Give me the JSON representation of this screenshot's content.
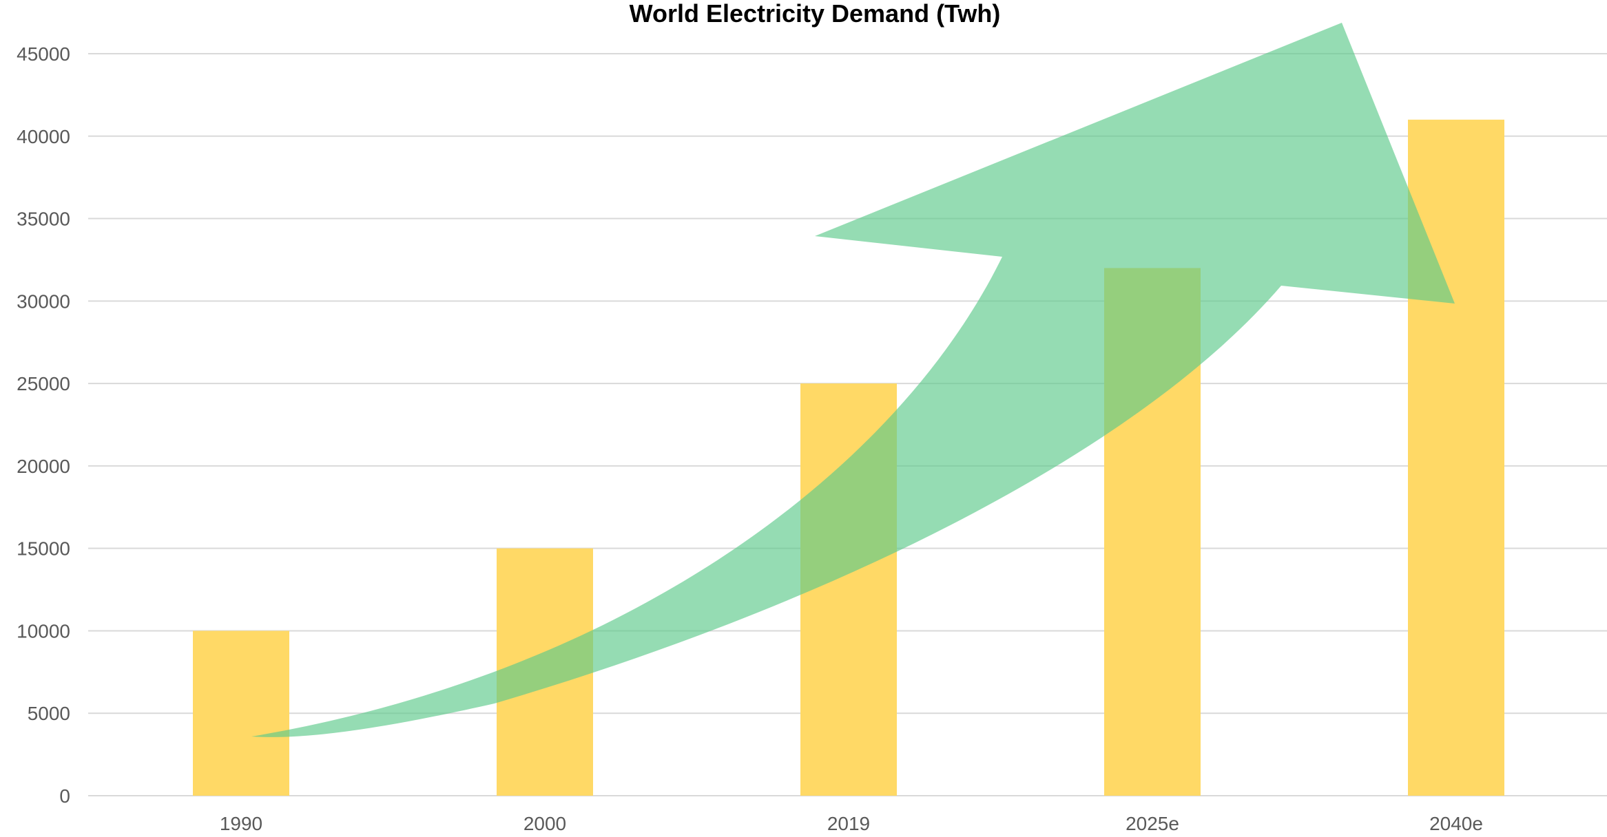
{
  "chart_data": {
    "type": "bar",
    "title": "World Electricity Demand (Twh)",
    "xlabel": "",
    "ylabel": "",
    "categories": [
      "1990",
      "2000",
      "2019",
      "2025e",
      "2040e"
    ],
    "values": [
      10000,
      15000,
      25000,
      32000,
      41000
    ],
    "ylim": [
      0,
      45000
    ],
    "yticks": [
      "0",
      "5000",
      "10000",
      "15000",
      "20000",
      "25000",
      "30000",
      "35000",
      "40000",
      "45000"
    ],
    "grid": true,
    "legend": "none",
    "colors": {
      "bar": "#FFD966",
      "trend_arrow": "#5CC98A",
      "gridline": "#D9D9D9",
      "axis_text": "#595959"
    },
    "annotations": [
      {
        "type": "trend-arrow",
        "direction": "upward",
        "color": "#5CC98A"
      }
    ]
  }
}
